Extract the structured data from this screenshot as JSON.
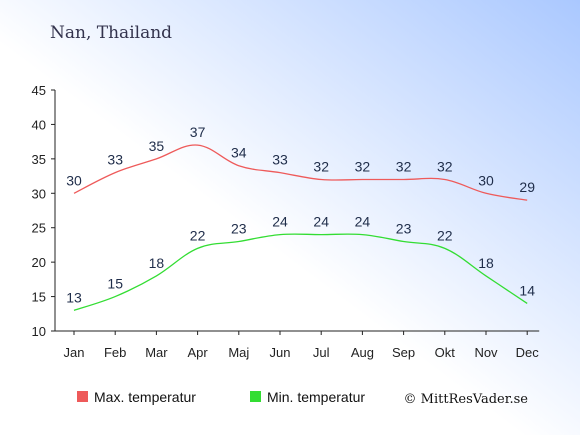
{
  "chart_data": {
    "type": "line",
    "title": "Nan, Thailand",
    "categories": [
      "Jan",
      "Feb",
      "Mar",
      "Apr",
      "Maj",
      "Jun",
      "Jul",
      "Aug",
      "Sep",
      "Okt",
      "Nov",
      "Dec"
    ],
    "yticks": [
      10,
      15,
      20,
      25,
      30,
      35,
      40,
      45
    ],
    "ylim": [
      10,
      45
    ],
    "series": [
      {
        "name": "Max. temperatur",
        "color": "#ee5a5a",
        "values": [
          30,
          33,
          35,
          37,
          34,
          33,
          32,
          32,
          32,
          32,
          30,
          29
        ]
      },
      {
        "name": "Min. temperatur",
        "color": "#33dd33",
        "values": [
          13,
          15,
          18,
          22,
          23,
          24,
          24,
          24,
          23,
          22,
          18,
          14
        ]
      }
    ],
    "legend_position": "bottom",
    "credit": "© MittResVader.se",
    "background_colors": [
      "#aac8ff",
      "#ffffff"
    ]
  }
}
